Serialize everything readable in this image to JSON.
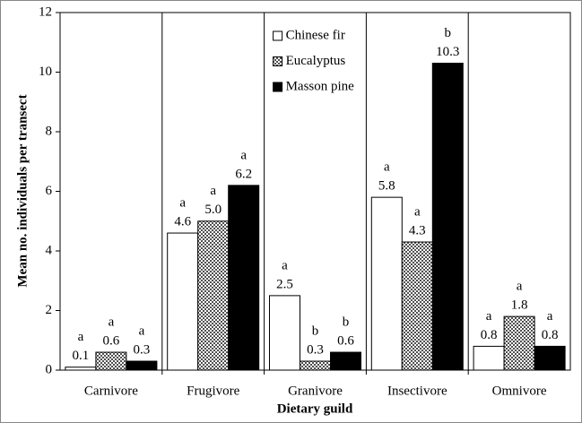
{
  "chart_data": {
    "type": "bar",
    "ylabel": "Mean no. individuals per transect",
    "xlabel": "Dietary guild",
    "categories": [
      "Carnivore",
      "Frugivore",
      "Granivore",
      "Insectivore",
      "Omnivore"
    ],
    "series": [
      {
        "name": "Chinese fir",
        "color": "#ffffff",
        "hatch": false,
        "values": [
          0.1,
          4.6,
          2.5,
          5.8,
          0.8
        ],
        "value_labels": [
          "0.1",
          "4.6",
          "2.5",
          "5.8",
          "0.8"
        ],
        "letters": [
          "a",
          "a",
          "a",
          "a",
          "a"
        ]
      },
      {
        "name": "Eucalyptus",
        "color": "#505050",
        "hatch": true,
        "values": [
          0.6,
          5.0,
          0.3,
          4.3,
          1.8
        ],
        "value_labels": [
          "0.6",
          "5.0",
          "0.3",
          "4.3",
          "1.8"
        ],
        "letters": [
          "a",
          "a",
          "b",
          "a",
          "a"
        ]
      },
      {
        "name": "Masson pine",
        "color": "#000000",
        "hatch": false,
        "values": [
          0.3,
          6.2,
          0.6,
          10.3,
          0.8
        ],
        "value_labels": [
          "0.3",
          "6.2",
          "0.6",
          "10.3",
          "0.8"
        ],
        "letters": [
          "a",
          "a",
          "b",
          "b",
          "a"
        ]
      }
    ],
    "ylim": [
      0,
      12
    ],
    "yticks": [
      0,
      2,
      4,
      6,
      8,
      10,
      12
    ],
    "legend": "top-center"
  }
}
